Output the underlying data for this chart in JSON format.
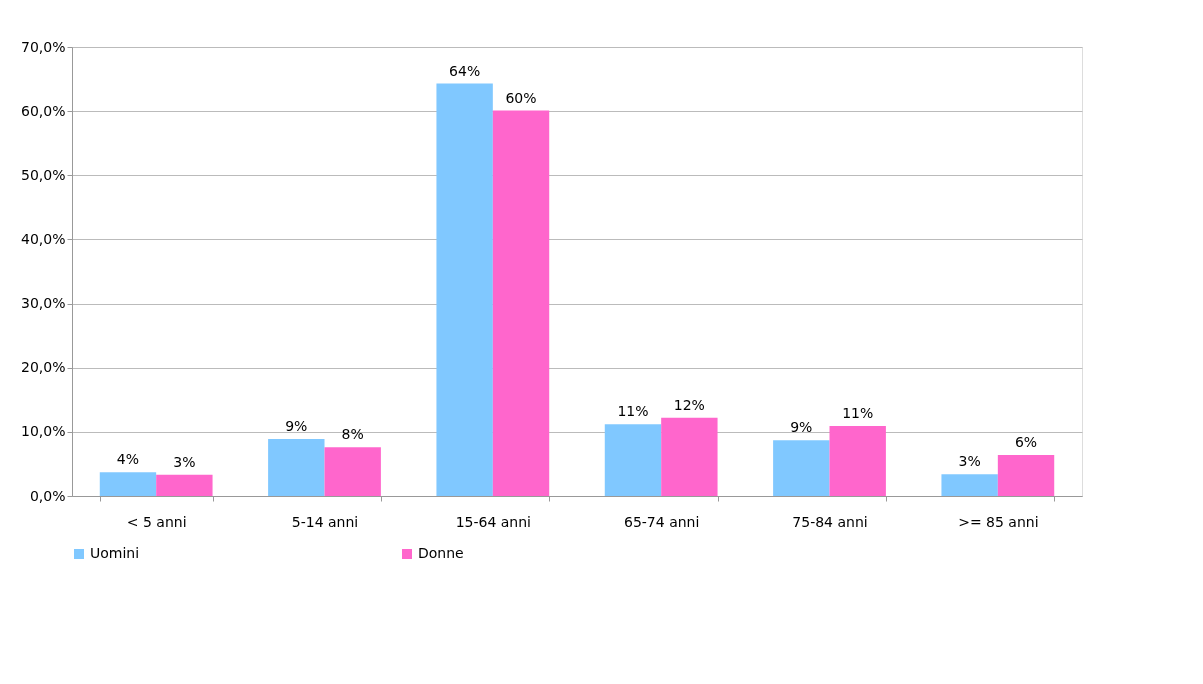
{
  "chart_data": {
    "type": "bar",
    "categories": [
      "< 5 anni",
      "5-14 anni",
      "15-64 anni",
      "65-74 anni",
      "75-84 anni",
      ">= 85 anni"
    ],
    "series": [
      {
        "name": "Uomini",
        "color": "#80c8ff",
        "values": [
          3.7,
          8.9,
          64.3,
          11.2,
          8.7,
          3.4
        ],
        "value_labels": [
          "4%",
          "9%",
          "64%",
          "11%",
          "9%",
          "3%"
        ]
      },
      {
        "name": "Donne",
        "color": "#ff66cc",
        "values": [
          3.3,
          7.6,
          60.1,
          12.2,
          10.9,
          6.4
        ],
        "value_labels": [
          "3%",
          "8%",
          "60%",
          "12%",
          "11%",
          "6%"
        ]
      }
    ],
    "ylim": [
      0,
      70
    ],
    "yticks": [
      {
        "value": 0,
        "label": "0,0%"
      },
      {
        "value": 10,
        "label": "10,0%"
      },
      {
        "value": 20,
        "label": "20,0%"
      },
      {
        "value": 30,
        "label": "30,0%"
      },
      {
        "value": 40,
        "label": "40,0%"
      },
      {
        "value": 50,
        "label": "50,0%"
      },
      {
        "value": 60,
        "label": "60,0%"
      },
      {
        "value": 70,
        "label": "70,0%"
      }
    ],
    "grid": "y",
    "legend": "bottom"
  }
}
